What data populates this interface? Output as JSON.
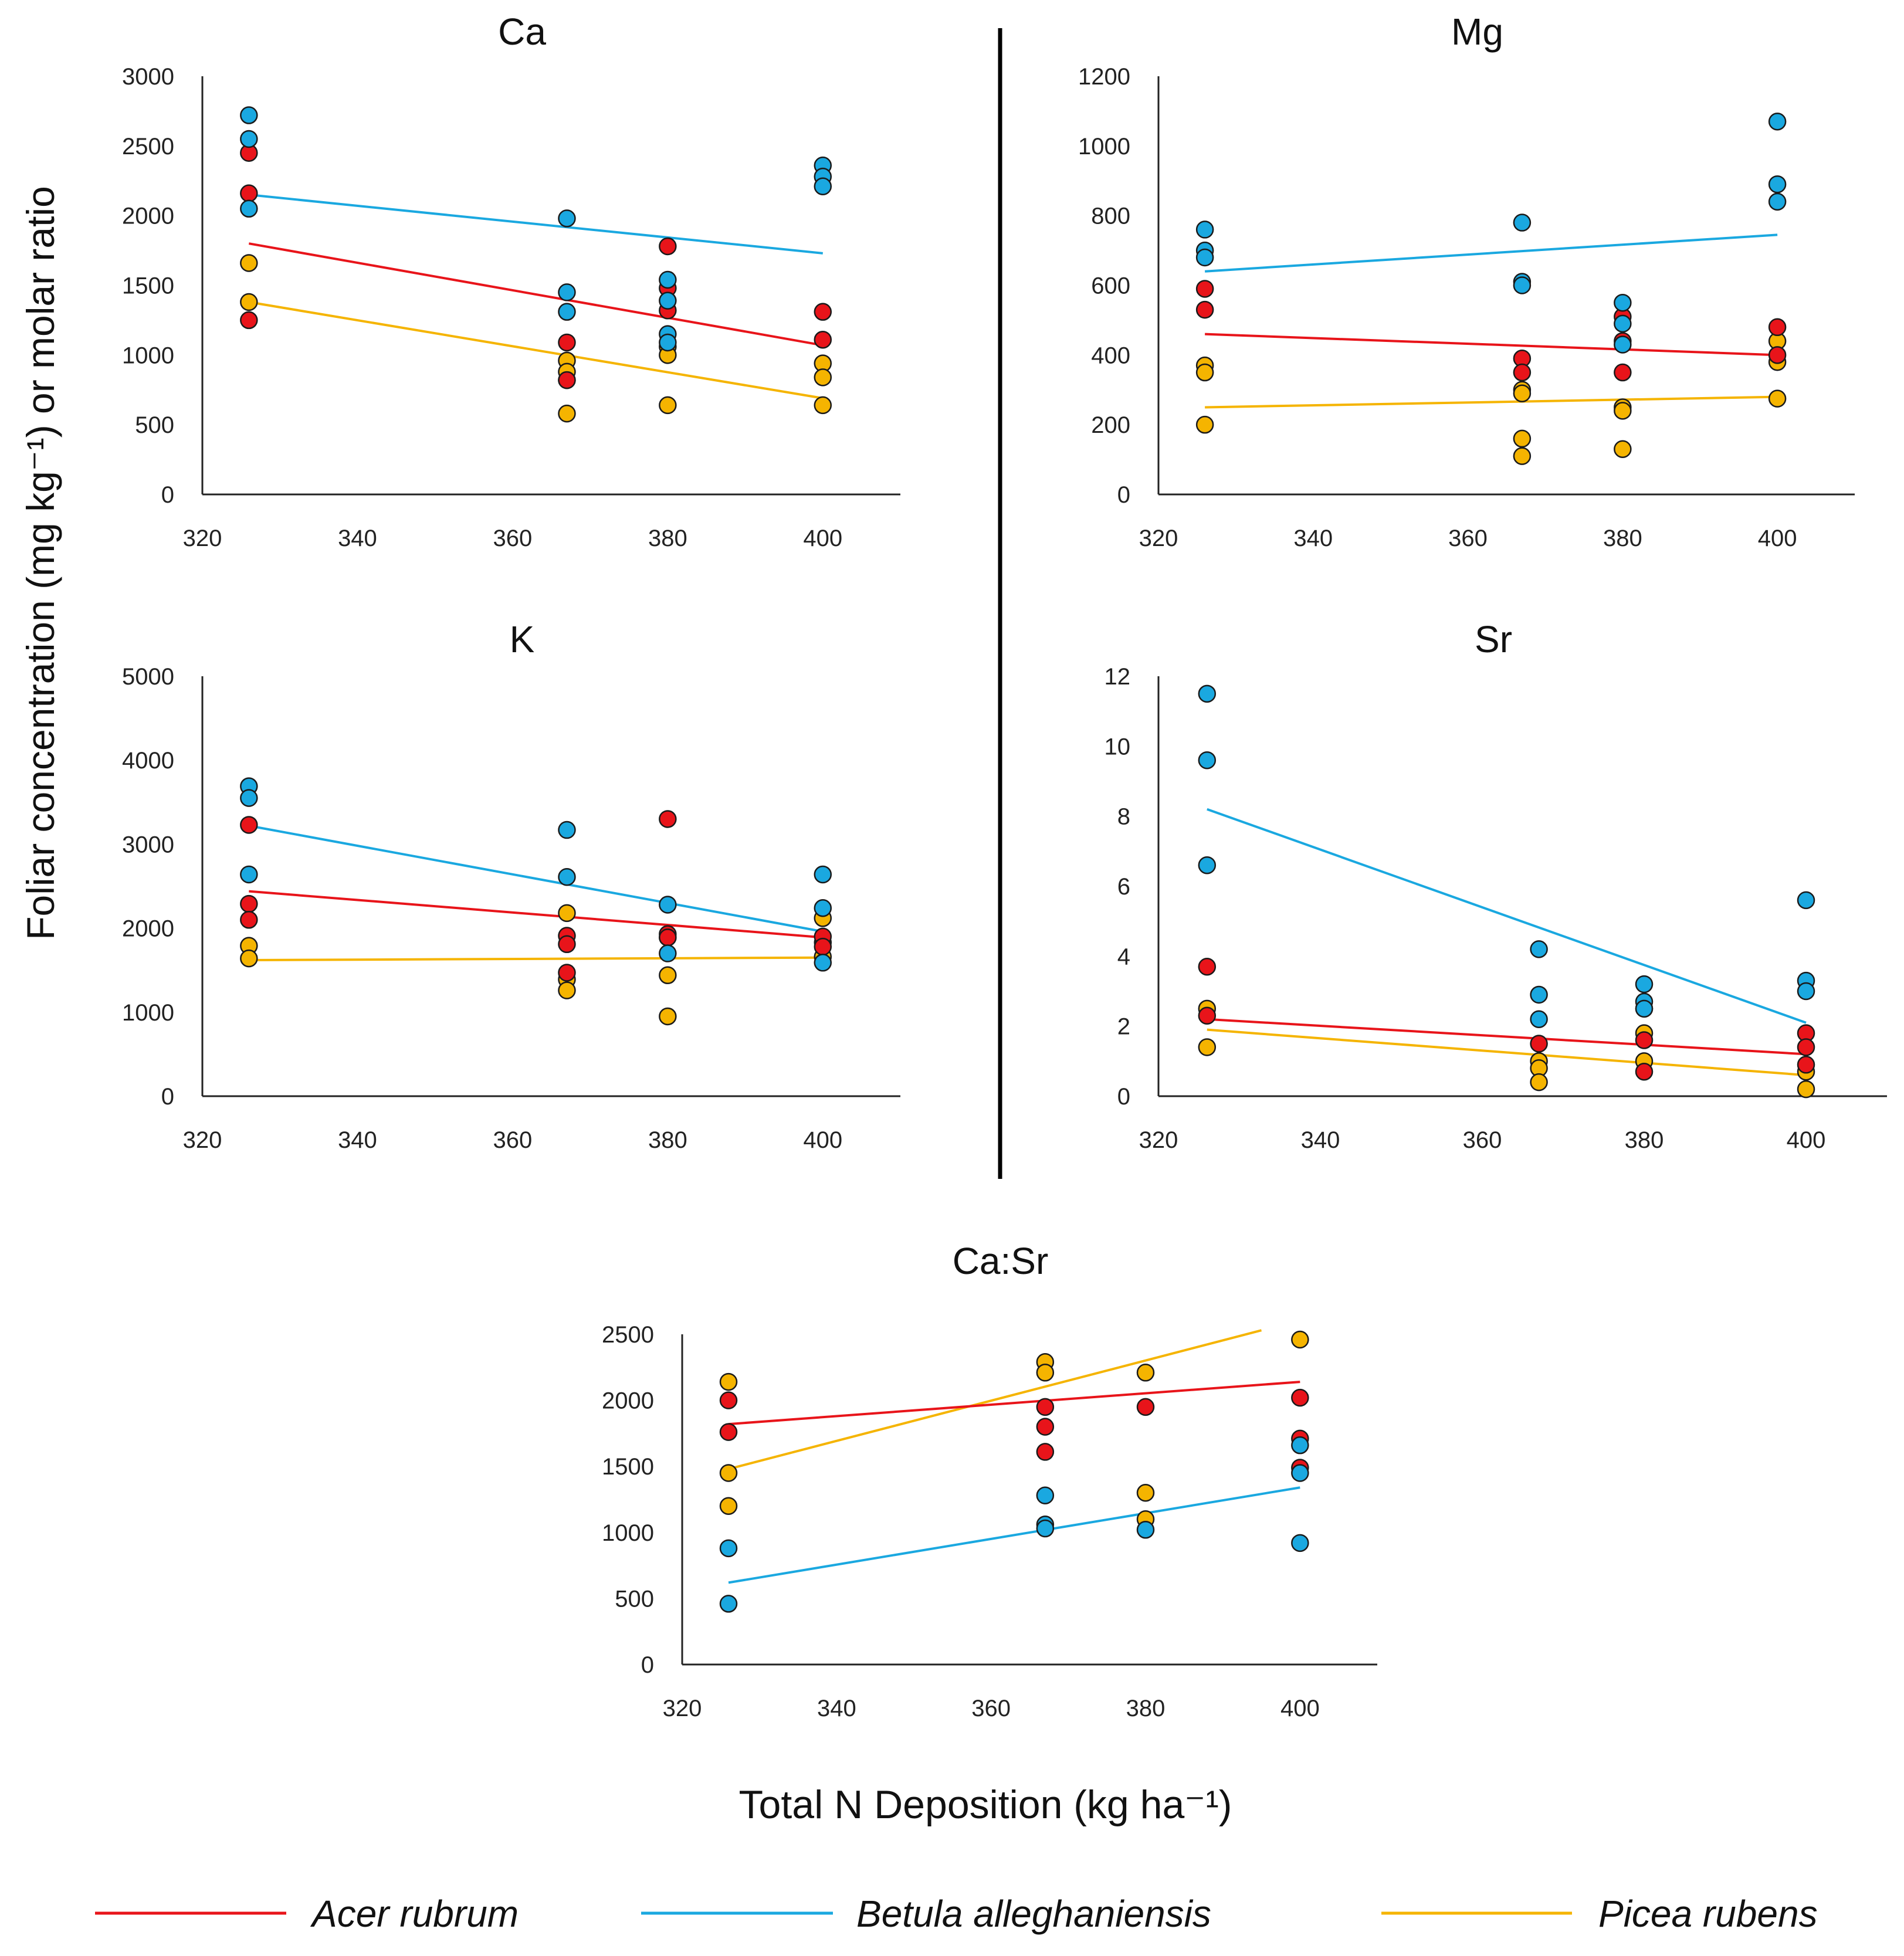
{
  "figure": {
    "y_axis_title": "Foliar concentration (mg kg⁻¹) or molar ratio",
    "x_axis_title": "Total N Deposition (kg ha⁻¹)",
    "series_colors": {
      "Acer rubrum": "#e8141a",
      "Betula alleghaniensis": "#1aa8e0",
      "Picea rubens": "#f5b400"
    },
    "legend": [
      {
        "name": "Acer rubrum",
        "color": "#e8141a"
      },
      {
        "name": "Betula alleghaniensis",
        "color": "#1aa8e0"
      },
      {
        "name": "Picea rubens",
        "color": "#f5b400"
      }
    ]
  },
  "chart_data": [
    {
      "id": "Ca",
      "type": "scatter",
      "title": "Ca",
      "xlim": [
        320,
        410
      ],
      "ylim": [
        0,
        3000
      ],
      "xticks": [
        320,
        340,
        360,
        380,
        400
      ],
      "yticks": [
        0,
        500,
        1000,
        1500,
        2000,
        2500,
        3000
      ],
      "series": [
        {
          "name": "Acer rubrum",
          "points": [
            [
              326,
              2450
            ],
            [
              326,
              2160
            ],
            [
              326,
              1250
            ],
            [
              367,
              1090
            ],
            [
              367,
              820
            ],
            [
              380,
              1780
            ],
            [
              380,
              1480
            ],
            [
              380,
              1320
            ],
            [
              400,
              1310
            ],
            [
              400,
              1110
            ]
          ],
          "trend": [
            [
              326,
              1800
            ],
            [
              400,
              1070
            ]
          ]
        },
        {
          "name": "Betula alleghaniensis",
          "points": [
            [
              326,
              2720
            ],
            [
              326,
              2550
            ],
            [
              326,
              2050
            ],
            [
              367,
              1980
            ],
            [
              367,
              1450
            ],
            [
              367,
              1310
            ],
            [
              380,
              1540
            ],
            [
              380,
              1390
            ],
            [
              380,
              1150
            ],
            [
              380,
              1090
            ],
            [
              400,
              2360
            ],
            [
              400,
              2280
            ],
            [
              400,
              2210
            ]
          ],
          "trend": [
            [
              326,
              2150
            ],
            [
              400,
              1730
            ]
          ]
        },
        {
          "name": "Picea rubens",
          "points": [
            [
              326,
              1660
            ],
            [
              326,
              1380
            ],
            [
              367,
              960
            ],
            [
              367,
              880
            ],
            [
              367,
              820
            ],
            [
              367,
              580
            ],
            [
              380,
              1060
            ],
            [
              380,
              1000
            ],
            [
              380,
              640
            ],
            [
              400,
              940
            ],
            [
              400,
              840
            ],
            [
              400,
              640
            ]
          ],
          "trend": [
            [
              326,
              1380
            ],
            [
              400,
              690
            ]
          ]
        }
      ]
    },
    {
      "id": "Mg",
      "type": "scatter",
      "title": "Mg",
      "xlim": [
        320,
        410
      ],
      "ylim": [
        0,
        1200
      ],
      "xticks": [
        320,
        340,
        360,
        380,
        400
      ],
      "yticks": [
        0,
        200,
        400,
        600,
        800,
        1000,
        1200
      ],
      "series": [
        {
          "name": "Acer rubrum",
          "points": [
            [
              326,
              590
            ],
            [
              326,
              530
            ],
            [
              367,
              390
            ],
            [
              367,
              350
            ],
            [
              380,
              510
            ],
            [
              380,
              440
            ],
            [
              380,
              350
            ],
            [
              400,
              480
            ],
            [
              400,
              400
            ]
          ],
          "trend": [
            [
              326,
              460
            ],
            [
              400,
              400
            ]
          ]
        },
        {
          "name": "Betula alleghaniensis",
          "points": [
            [
              326,
              760
            ],
            [
              326,
              700
            ],
            [
              326,
              680
            ],
            [
              367,
              780
            ],
            [
              367,
              610
            ],
            [
              367,
              600
            ],
            [
              380,
              550
            ],
            [
              380,
              490
            ],
            [
              380,
              430
            ],
            [
              400,
              1070
            ],
            [
              400,
              890
            ],
            [
              400,
              840
            ]
          ],
          "trend": [
            [
              326,
              640
            ],
            [
              400,
              745
            ]
          ]
        },
        {
          "name": "Picea rubens",
          "points": [
            [
              326,
              370
            ],
            [
              326,
              350
            ],
            [
              326,
              200
            ],
            [
              367,
              300
            ],
            [
              367,
              290
            ],
            [
              367,
              160
            ],
            [
              367,
              110
            ],
            [
              380,
              250
            ],
            [
              380,
              240
            ],
            [
              380,
              130
            ],
            [
              400,
              440
            ],
            [
              400,
              380
            ],
            [
              400,
              275
            ]
          ],
          "trend": [
            [
              326,
              250
            ],
            [
              400,
              280
            ]
          ]
        }
      ]
    },
    {
      "id": "K",
      "type": "scatter",
      "title": "K",
      "xlim": [
        320,
        410
      ],
      "ylim": [
        0,
        5000
      ],
      "xticks": [
        320,
        340,
        360,
        380,
        400
      ],
      "yticks": [
        0,
        1000,
        2000,
        3000,
        4000,
        5000
      ],
      "series": [
        {
          "name": "Acer rubrum",
          "points": [
            [
              326,
              3230
            ],
            [
              326,
              2290
            ],
            [
              326,
              2100
            ],
            [
              367,
              1910
            ],
            [
              367,
              1810
            ],
            [
              367,
              1470
            ],
            [
              380,
              3300
            ],
            [
              380,
              1930
            ],
            [
              380,
              1890
            ],
            [
              400,
              1900
            ],
            [
              400,
              1780
            ]
          ],
          "trend": [
            [
              326,
              2440
            ],
            [
              400,
              1890
            ]
          ]
        },
        {
          "name": "Betula alleghaniensis",
          "points": [
            [
              326,
              3690
            ],
            [
              326,
              3550
            ],
            [
              326,
              2640
            ],
            [
              367,
              3170
            ],
            [
              367,
              2610
            ],
            [
              380,
              2280
            ],
            [
              380,
              1700
            ],
            [
              400,
              2640
            ],
            [
              400,
              2240
            ],
            [
              400,
              1590
            ]
          ],
          "trend": [
            [
              326,
              3220
            ],
            [
              400,
              1960
            ]
          ]
        },
        {
          "name": "Picea rubens",
          "points": [
            [
              326,
              1790
            ],
            [
              326,
              1640
            ],
            [
              367,
              2180
            ],
            [
              367,
              1390
            ],
            [
              367,
              1260
            ],
            [
              380,
              1890
            ],
            [
              380,
              1440
            ],
            [
              380,
              950
            ],
            [
              400,
              2120
            ],
            [
              400,
              1830
            ],
            [
              400,
              1660
            ]
          ],
          "trend": [
            [
              326,
              1620
            ],
            [
              400,
              1650
            ]
          ]
        }
      ]
    },
    {
      "id": "Sr",
      "type": "scatter",
      "title": "Sr",
      "xlim": [
        320,
        410
      ],
      "ylim": [
        0,
        12
      ],
      "xticks": [
        320,
        340,
        360,
        380,
        400
      ],
      "yticks": [
        0,
        2,
        4,
        6,
        8,
        10,
        12
      ],
      "series": [
        {
          "name": "Acer rubrum",
          "points": [
            [
              326,
              3.7
            ],
            [
              326,
              2.3
            ],
            [
              367,
              1.5
            ],
            [
              380,
              2.5
            ],
            [
              380,
              1.6
            ],
            [
              380,
              0.7
            ],
            [
              400,
              1.8
            ],
            [
              400,
              1.4
            ],
            [
              400,
              0.9
            ]
          ],
          "trend": [
            [
              326,
              2.2
            ],
            [
              400,
              1.2
            ]
          ]
        },
        {
          "name": "Betula alleghaniensis",
          "points": [
            [
              326,
              11.5
            ],
            [
              326,
              9.6
            ],
            [
              326,
              6.6
            ],
            [
              367,
              4.2
            ],
            [
              367,
              2.9
            ],
            [
              367,
              2.2
            ],
            [
              380,
              3.2
            ],
            [
              380,
              2.7
            ],
            [
              380,
              2.5
            ],
            [
              400,
              5.6
            ],
            [
              400,
              3.3
            ],
            [
              400,
              3.0
            ]
          ],
          "trend": [
            [
              326,
              8.2
            ],
            [
              400,
              2.1
            ]
          ]
        },
        {
          "name": "Picea rubens",
          "points": [
            [
              326,
              2.5
            ],
            [
              326,
              1.4
            ],
            [
              367,
              1.0
            ],
            [
              367,
              0.8
            ],
            [
              367,
              0.4
            ],
            [
              380,
              1.8
            ],
            [
              380,
              1.0
            ],
            [
              400,
              0.7
            ],
            [
              400,
              0.2
            ]
          ],
          "trend": [
            [
              326,
              1.9
            ],
            [
              400,
              0.6
            ]
          ]
        }
      ]
    },
    {
      "id": "CaSr",
      "type": "scatter",
      "title": "Ca:Sr",
      "xlim": [
        320,
        410
      ],
      "ylim": [
        0,
        2500
      ],
      "xticks": [
        320,
        340,
        360,
        380,
        400
      ],
      "yticks": [
        0,
        500,
        1000,
        1500,
        2000,
        2500
      ],
      "series": [
        {
          "name": "Acer rubrum",
          "points": [
            [
              326,
              2000
            ],
            [
              326,
              1760
            ],
            [
              367,
              1950
            ],
            [
              367,
              1800
            ],
            [
              367,
              1610
            ],
            [
              380,
              1950
            ],
            [
              400,
              2020
            ],
            [
              400,
              1710
            ],
            [
              400,
              1490
            ]
          ],
          "trend": [
            [
              326,
              1820
            ],
            [
              400,
              2140
            ]
          ]
        },
        {
          "name": "Betula alleghaniensis",
          "points": [
            [
              326,
              880
            ],
            [
              326,
              460
            ],
            [
              367,
              1280
            ],
            [
              367,
              1060
            ],
            [
              367,
              1030
            ],
            [
              380,
              1020
            ],
            [
              400,
              1660
            ],
            [
              400,
              1450
            ],
            [
              400,
              920
            ]
          ],
          "trend": [
            [
              326,
              620
            ],
            [
              400,
              1340
            ]
          ]
        },
        {
          "name": "Picea rubens",
          "points": [
            [
              326,
              2140
            ],
            [
              326,
              1450
            ],
            [
              326,
              1200
            ],
            [
              367,
              2290
            ],
            [
              367,
              2210
            ],
            [
              380,
              2210
            ],
            [
              380,
              1300
            ],
            [
              380,
              1100
            ],
            [
              400,
              2460
            ]
          ],
          "trend": [
            [
              326,
              1480
            ],
            [
              395,
              2530
            ]
          ]
        }
      ]
    }
  ]
}
